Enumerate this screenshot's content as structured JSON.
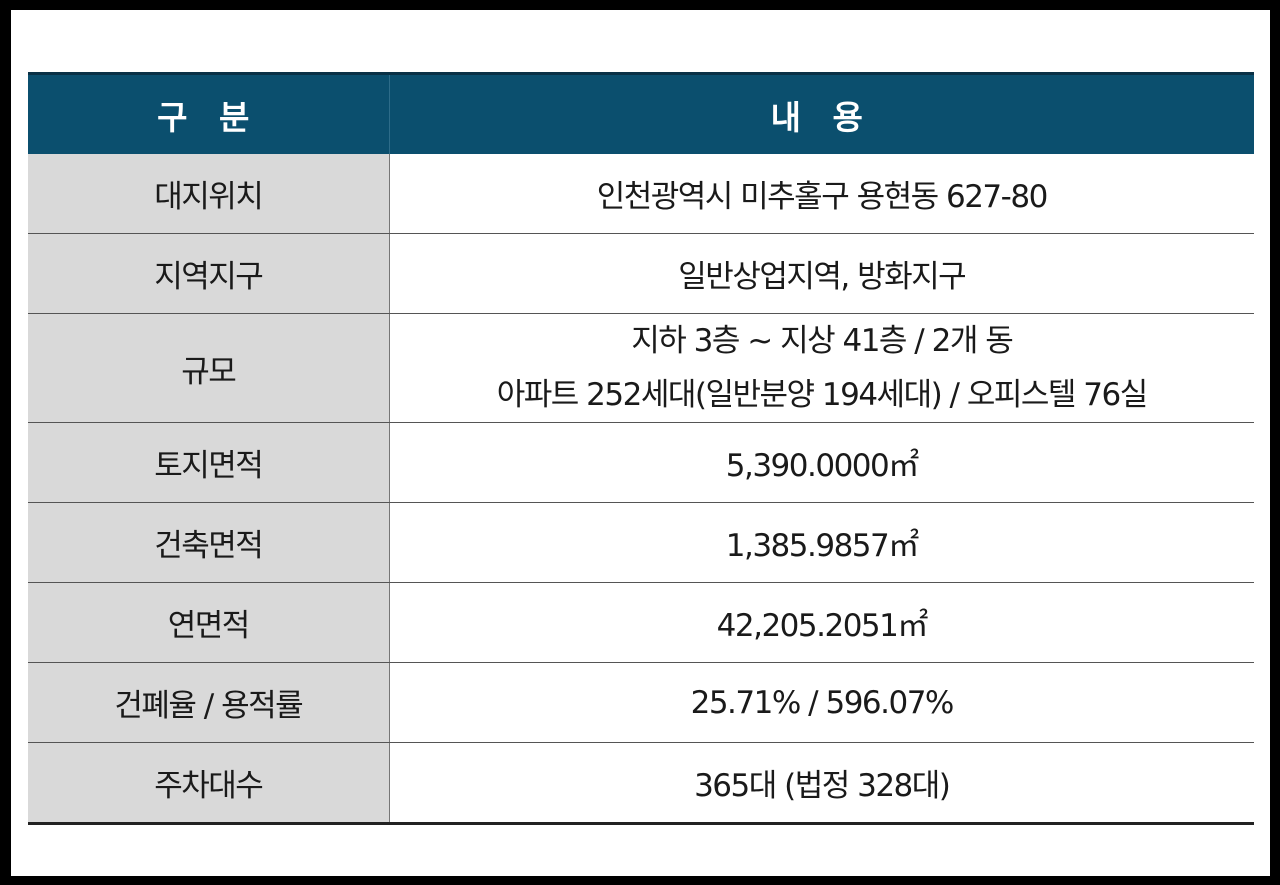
{
  "header": {
    "col1": "구 분",
    "col2": "내 용"
  },
  "rows": [
    {
      "label": "대지위치",
      "lines": [
        "인천광역시 미추홀구 용현동 627-80"
      ]
    },
    {
      "label": "지역지구",
      "lines": [
        "일반상업지역, 방화지구"
      ]
    },
    {
      "label": "규모",
      "lines": [
        "지하 3층 ~ 지상 41층 / 2개 동",
        "아파트 252세대(일반분양 194세대) / 오피스텔 76실"
      ]
    },
    {
      "label": "토지면적",
      "lines": [
        "5,390.0000㎡"
      ]
    },
    {
      "label": "건축면적",
      "lines": [
        "1,385.9857㎡"
      ]
    },
    {
      "label": "연면적",
      "lines": [
        "42,205.2051㎡"
      ]
    },
    {
      "label": "건폐율 / 용적률",
      "lines": [
        "25.71% / 596.07%"
      ]
    },
    {
      "label": "주차대수",
      "lines": [
        "365대 (법정 328대)"
      ]
    }
  ]
}
